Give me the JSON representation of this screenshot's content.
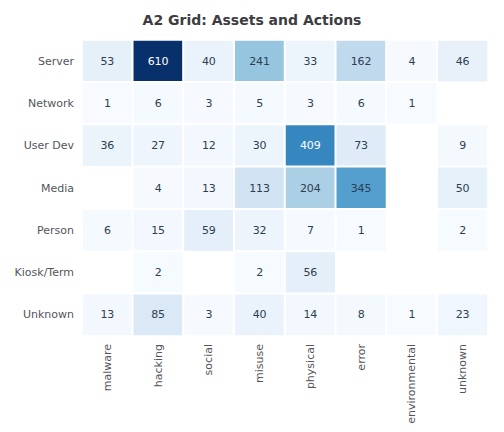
{
  "chart_data": {
    "type": "heatmap",
    "title": "A2 Grid: Assets and Actions",
    "categories": [
      "malware",
      "hacking",
      "social",
      "misuse",
      "physical",
      "error",
      "environmental",
      "unknown"
    ],
    "rows": [
      "Server",
      "Network",
      "User Dev",
      "Media",
      "Person",
      "Kiosk/Term",
      "Unknown"
    ],
    "values": [
      [
        53,
        610,
        40,
        241,
        33,
        162,
        4,
        46
      ],
      [
        1,
        6,
        3,
        5,
        3,
        6,
        1,
        null
      ],
      [
        36,
        27,
        12,
        30,
        409,
        73,
        null,
        9
      ],
      [
        null,
        4,
        13,
        113,
        204,
        345,
        null,
        50
      ],
      [
        6,
        15,
        59,
        32,
        7,
        1,
        null,
        2
      ],
      [
        null,
        2,
        null,
        2,
        56,
        null,
        null,
        null
      ],
      [
        13,
        85,
        3,
        40,
        14,
        8,
        1,
        23
      ]
    ],
    "color_range": [
      0,
      610
    ],
    "colors": [
      "#f7fbff",
      "#deebf7",
      "#c6dbef",
      "#9ecae1",
      "#6baed6",
      "#4292c6",
      "#2171b5",
      "#08519c",
      "#08306b"
    ],
    "data_labels": true
  }
}
